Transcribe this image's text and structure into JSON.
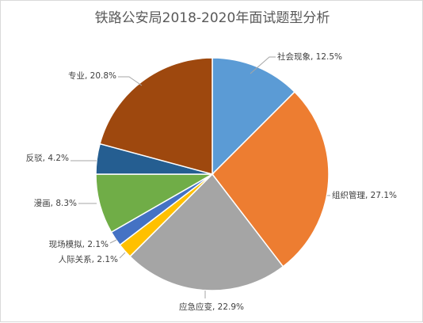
{
  "chart_data": {
    "type": "pie",
    "title": "铁路公安局2018-2020年面试题型分析",
    "slices": [
      {
        "name": "社会现象",
        "value": 12.5,
        "label": "社会现象, 12.5%",
        "color": "#5b9bd5"
      },
      {
        "name": "组织管理",
        "value": 27.1,
        "label": "组织管理, 27.1%",
        "color": "#ed7d31"
      },
      {
        "name": "应急应变",
        "value": 22.9,
        "label": "应急应变, 22.9%",
        "color": "#a5a5a5"
      },
      {
        "name": "人际关系",
        "value": 2.1,
        "label": "人际关系, 2.1%",
        "color": "#ffc000"
      },
      {
        "name": "现场模拟",
        "value": 2.1,
        "label": "现场模拟, 2.1%",
        "color": "#4472c4"
      },
      {
        "name": "漫画",
        "value": 8.3,
        "label": "漫画, 8.3%",
        "color": "#70ad47"
      },
      {
        "name": "反驳",
        "value": 4.2,
        "label": "反驳, 4.2%",
        "color": "#255e91"
      },
      {
        "name": "专业",
        "value": 20.8,
        "label": "专业, 20.8%",
        "color": "#9e480e"
      }
    ]
  }
}
